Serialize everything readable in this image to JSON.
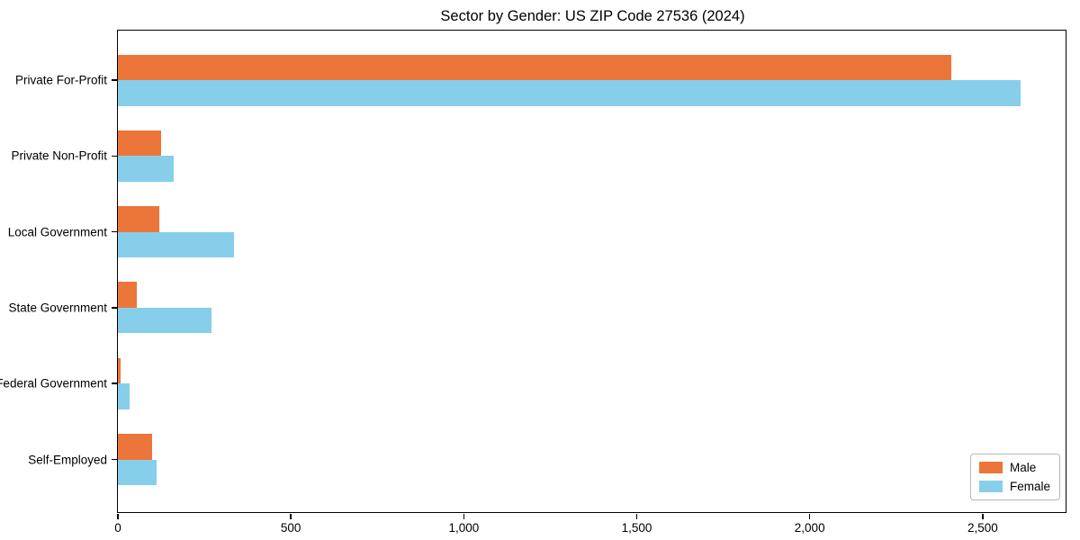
{
  "chart_data": {
    "type": "bar",
    "orientation": "horizontal",
    "title": "Sector by Gender: US ZIP Code 27536 (2024)",
    "xlabel": "",
    "ylabel": "",
    "categories": [
      "Private For-Profit",
      "Private Non-Profit",
      "Local Government",
      "State Government",
      "Federal Government",
      "Self-Employed"
    ],
    "series": [
      {
        "name": "Male",
        "color": "#EC753A",
        "values": [
          2410,
          126,
          119,
          55,
          7,
          100
        ]
      },
      {
        "name": "Female",
        "color": "#87CEEB",
        "values": [
          2610,
          162,
          335,
          271,
          35,
          113
        ]
      }
    ],
    "xlim": [
      0,
      2741
    ],
    "xtick_values": [
      0,
      500,
      1000,
      1500,
      2000,
      2500
    ],
    "xtick_labels": [
      "0",
      "500",
      "1,000",
      "1,500",
      "2,000",
      "2,500"
    ],
    "grid": false,
    "legend": {
      "position": "lower right",
      "entries": [
        "Male",
        "Female"
      ]
    },
    "colors": {
      "male": "#EC753A",
      "female": "#87CEEB",
      "spine": "#000000",
      "background": "#ffffff"
    }
  }
}
